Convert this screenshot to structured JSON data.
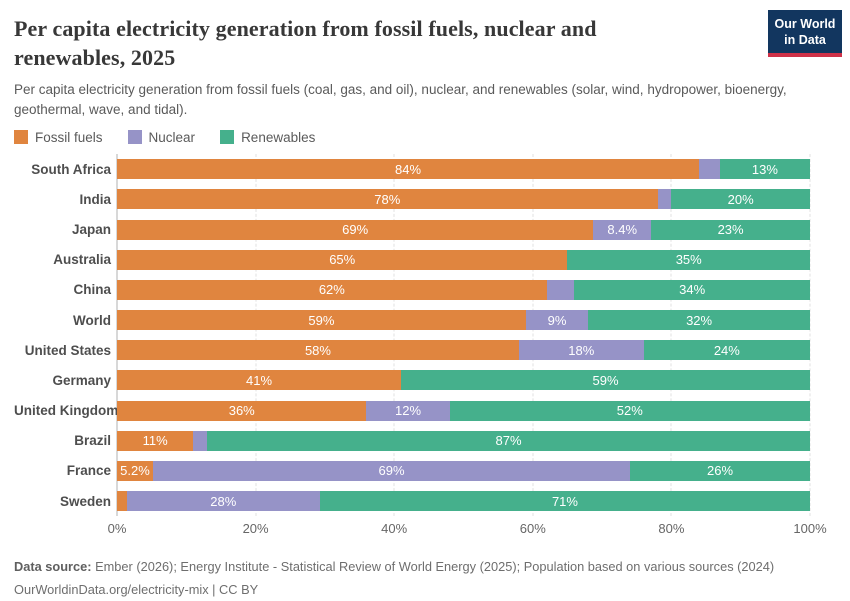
{
  "header": {
    "title": "Per capita electricity generation from fossil fuels, nuclear and renewables, 2025",
    "subtitle": "Per capita electricity generation from fossil fuels (coal, gas, and oil), nuclear, and renewables (solar, wind, hydropower, bioenergy, geothermal, wave, and tidal).",
    "logo": {
      "line1": "Our World",
      "line2": "in Data",
      "bg_color": "#12365f",
      "accent_color": "#cf3148"
    }
  },
  "legend": {
    "items": [
      {
        "label": "Fossil fuels",
        "color": "#e0853f"
      },
      {
        "label": "Nuclear",
        "color": "#9693c7"
      },
      {
        "label": "Renewables",
        "color": "#45b08c"
      }
    ]
  },
  "chart_data": {
    "type": "bar",
    "stacked": true,
    "orientation": "horizontal",
    "title": "Per capita electricity generation from fossil fuels, nuclear and renewables, 2025",
    "unit": "%",
    "xlim": [
      0,
      100
    ],
    "grid": true,
    "legend_position": "top",
    "x_ticks": [
      "0%",
      "20%",
      "40%",
      "60%",
      "80%",
      "100%"
    ],
    "categories": [
      "South Africa",
      "India",
      "Japan",
      "Australia",
      "China",
      "World",
      "United States",
      "Germany",
      "United Kingdom",
      "Brazil",
      "France",
      "Sweden"
    ],
    "series": [
      {
        "name": "Fossil fuels",
        "color": "#e0853f",
        "values": [
          84,
          78,
          69,
          65,
          62,
          59,
          58,
          41,
          36,
          11,
          5.2,
          1.4
        ],
        "labels": [
          "84%",
          "78%",
          "69%",
          "65%",
          "62%",
          "59%",
          "58%",
          "41%",
          "36%",
          "11%",
          "5.2%",
          ""
        ]
      },
      {
        "name": "Nuclear",
        "color": "#9693c7",
        "values": [
          3,
          2,
          8.4,
          0,
          4,
          9,
          18,
          0,
          12,
          2,
          69,
          28
        ],
        "labels": [
          "",
          "",
          "8.4%",
          "",
          "",
          "9%",
          "18%",
          "",
          "12%",
          "",
          "69%",
          "28%"
        ]
      },
      {
        "name": "Renewables",
        "color": "#45b08c",
        "values": [
          13,
          20,
          23,
          35,
          34,
          32,
          24,
          59,
          52,
          87,
          26,
          71
        ],
        "labels": [
          "13%",
          "20%",
          "23%",
          "35%",
          "34%",
          "32%",
          "24%",
          "59%",
          "52%",
          "87%",
          "26%",
          "71%"
        ]
      }
    ]
  },
  "footer": {
    "source_label": "Data source:",
    "source_text": " Ember (2026); Energy Institute - Statistical Review of World Energy (2025); Population based on various sources (2024)",
    "license": "OurWorldinData.org/electricity-mix | CC BY"
  }
}
